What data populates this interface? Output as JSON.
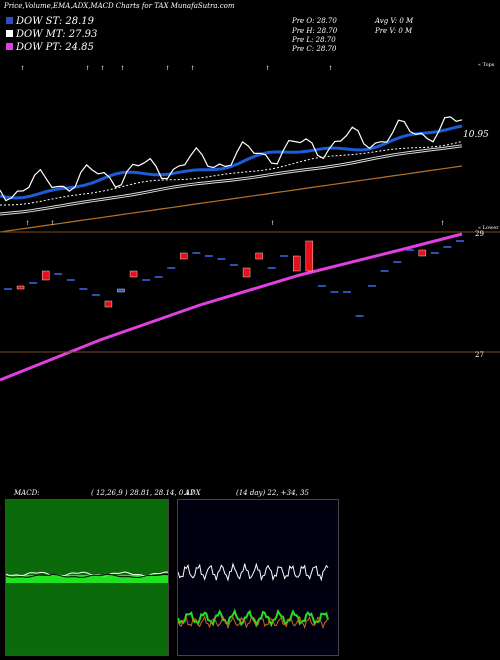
{
  "header": {
    "title": "Price,Volume,EMA,ADX,MACD Charts for TAX  MunafaSutra.com"
  },
  "legend": [
    {
      "label": "DOW ST: 28.19",
      "color": "#2a52be"
    },
    {
      "label": "DOW MT: 27.93",
      "color": "#ffffff"
    },
    {
      "label": "DOW PT: 24.85",
      "color": "#e040e0"
    }
  ],
  "ohlc": {
    "open": "Pre  O: 28.70",
    "high": "Pre  H: 28.70",
    "low": "Pre  L: 28.70",
    "close": "Pre  C: 28.70",
    "avg_volume": "Avg V: 0  M",
    "pre_volume": "Pre  V: 0  M"
  },
  "price_label": "10.95",
  "axis_labels": {
    "top": "« Tops",
    "lower": "« Lower",
    "level_high": "29",
    "level_low": "27"
  },
  "colors": {
    "background": "#000000",
    "blue_ema": "#1e5bd6",
    "pink_ema": "#e040e0",
    "orange_ema": "#b8732a",
    "up": "#1e5bd6",
    "down": "#e8101a",
    "macd_bg": "#0b6b0b",
    "adx_bg": "#000010"
  },
  "macd": {
    "label": "MACD:",
    "values": "( 12,26,9 ) 28.81, 28.14, 0.17"
  },
  "adx": {
    "label": "ADX",
    "values": "(14  day) 22, +34, 35"
  },
  "chart_data": [
    {
      "type": "line",
      "title": "Price",
      "series": [
        {
          "name": "DOW ST",
          "color": "#1e5bd6"
        },
        {
          "name": "DOW MT",
          "color": "#ffffff"
        },
        {
          "name": "DOW PT",
          "color": "#e040e0"
        }
      ]
    },
    {
      "type": "bar",
      "title": "Candles",
      "ylim": [
        26.5,
        29.3
      ],
      "candles": [
        {
          "o": 28.05,
          "c": 28.05,
          "dir": "flat"
        },
        {
          "o": 28.1,
          "c": 28.05,
          "dir": "down"
        },
        {
          "o": 28.15,
          "c": 28.15,
          "dir": "flat"
        },
        {
          "o": 28.35,
          "c": 28.2,
          "dir": "down"
        },
        {
          "o": 28.3,
          "c": 28.3,
          "dir": "flat"
        },
        {
          "o": 28.2,
          "c": 28.2,
          "dir": "flat"
        },
        {
          "o": 28.05,
          "c": 28.05,
          "dir": "flat"
        },
        {
          "o": 27.95,
          "c": 27.95,
          "dir": "flat"
        },
        {
          "o": 27.85,
          "c": 27.75,
          "dir": "down"
        },
        {
          "o": 28.0,
          "c": 28.05,
          "dir": "up"
        },
        {
          "o": 28.35,
          "c": 28.25,
          "dir": "down"
        },
        {
          "o": 28.2,
          "c": 28.2,
          "dir": "flat"
        },
        {
          "o": 28.25,
          "c": 28.25,
          "dir": "flat"
        },
        {
          "o": 28.4,
          "c": 28.4,
          "dir": "flat"
        },
        {
          "o": 28.65,
          "c": 28.55,
          "dir": "down"
        },
        {
          "o": 28.65,
          "c": 28.65,
          "dir": "flat"
        },
        {
          "o": 28.6,
          "c": 28.6,
          "dir": "flat"
        },
        {
          "o": 28.55,
          "c": 28.55,
          "dir": "flat"
        },
        {
          "o": 28.45,
          "c": 28.45,
          "dir": "flat"
        },
        {
          "o": 28.4,
          "c": 28.25,
          "dir": "down"
        },
        {
          "o": 28.65,
          "c": 28.55,
          "dir": "down"
        },
        {
          "o": 28.4,
          "c": 28.4,
          "dir": "flat"
        },
        {
          "o": 28.6,
          "c": 28.6,
          "dir": "flat"
        },
        {
          "o": 28.6,
          "c": 28.35,
          "dir": "down"
        },
        {
          "o": 28.85,
          "c": 28.35,
          "dir": "down"
        },
        {
          "o": 28.1,
          "c": 28.1,
          "dir": "flat"
        },
        {
          "o": 28.0,
          "c": 28.0,
          "dir": "flat"
        },
        {
          "o": 28.0,
          "c": 28.0,
          "dir": "flat"
        },
        {
          "o": 27.6,
          "c": 27.6,
          "dir": "flat"
        },
        {
          "o": 28.1,
          "c": 28.1,
          "dir": "flat"
        },
        {
          "o": 28.35,
          "c": 28.35,
          "dir": "flat"
        },
        {
          "o": 28.5,
          "c": 28.5,
          "dir": "flat"
        },
        {
          "o": 28.7,
          "c": 28.7,
          "dir": "flat"
        },
        {
          "o": 28.7,
          "c": 28.6,
          "dir": "down"
        },
        {
          "o": 28.65,
          "c": 28.65,
          "dir": "flat"
        },
        {
          "o": 28.75,
          "c": 28.75,
          "dir": "flat"
        },
        {
          "o": 28.85,
          "c": 28.85,
          "dir": "flat"
        }
      ]
    }
  ]
}
